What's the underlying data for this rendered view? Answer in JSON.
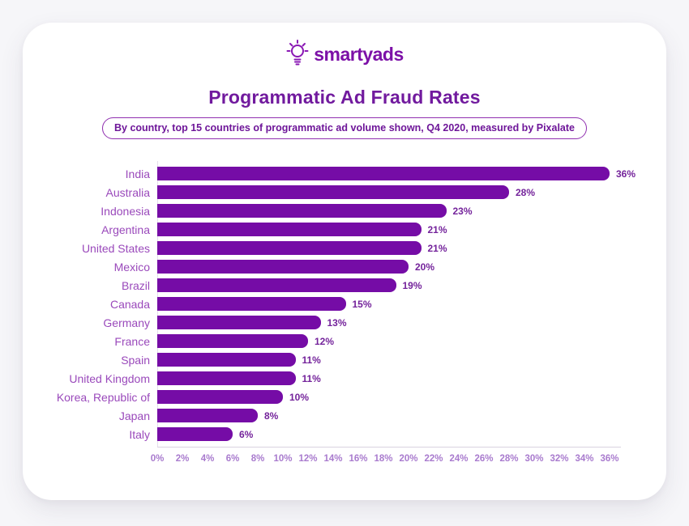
{
  "logo": {
    "name": "smartyads",
    "icon": "lightbulb-icon",
    "color": "#7c10a7"
  },
  "header": {
    "title": "Programmatic Ad Fraud Rates",
    "subtitle": "By country, top 15 countries of programmatic ad volume shown, Q4 2020, measured by Pixalate"
  },
  "chart_data": {
    "type": "bar",
    "orientation": "horizontal",
    "title": "Programmatic Ad Fraud Rates",
    "subtitle": "By country, top 15 countries of programmatic ad volume shown, Q4 2020, measured by Pixalate",
    "categories": [
      "India",
      "Australia",
      "Indonesia",
      "Argentina",
      "United States",
      "Mexico",
      "Brazil",
      "Canada",
      "Germany",
      "France",
      "Spain",
      "United Kingdom",
      "Korea, Republic of",
      "Japan",
      "Italy"
    ],
    "values": [
      36,
      28,
      23,
      21,
      21,
      20,
      19,
      15,
      13,
      12,
      11,
      11,
      10,
      8,
      6
    ],
    "value_labels": [
      "36%",
      "28%",
      "23%",
      "21%",
      "21%",
      "20%",
      "19%",
      "15%",
      "13%",
      "12%",
      "11%",
      "11%",
      "10%",
      "8%",
      "6%"
    ],
    "xlim": [
      0,
      36
    ],
    "x_ticks": [
      "0%",
      "2%",
      "4%",
      "6%",
      "8%",
      "10%",
      "12%",
      "14%",
      "16%",
      "18%",
      "20%",
      "22%",
      "24%",
      "26%",
      "28%",
      "30%",
      "32%",
      "34%",
      "36%"
    ],
    "grid": false,
    "legend": false,
    "bar_color": "#750ca6",
    "category_label_color": "#9a49bb",
    "value_label_color": "#74239b",
    "tick_label_color": "#a97bce"
  }
}
